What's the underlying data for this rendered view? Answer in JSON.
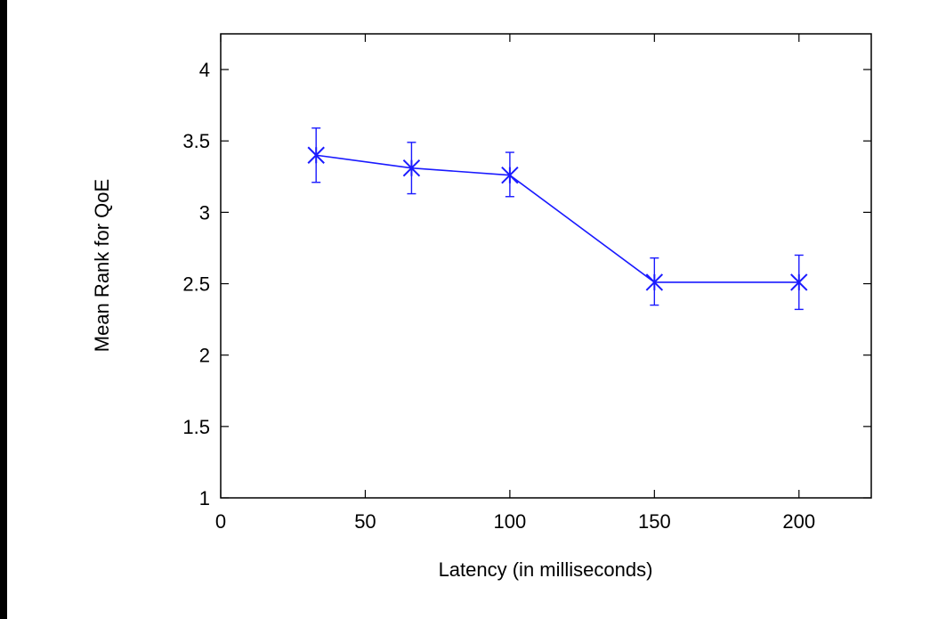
{
  "chart_data": {
    "type": "line",
    "title": "",
    "xlabel": "Latency (in milliseconds)",
    "ylabel": "Mean Rank for QoE",
    "xlim": [
      0,
      225
    ],
    "ylim": [
      1,
      4.25
    ],
    "x_ticks": [
      "0",
      "50",
      "100",
      "150",
      "200"
    ],
    "y_ticks": [
      "1",
      "1.5",
      "2",
      "2.5",
      "3",
      "3.5",
      "4"
    ],
    "grid": false,
    "legend": "none",
    "series": [
      {
        "color": "#1a1aff",
        "marker": "star",
        "points": [
          {
            "x": 33,
            "y": 3.4,
            "err_low": 3.21,
            "err_high": 3.59
          },
          {
            "x": 66,
            "y": 3.31,
            "err_low": 3.13,
            "err_high": 3.49
          },
          {
            "x": 100,
            "y": 3.26,
            "err_low": 3.11,
            "err_high": 3.42
          },
          {
            "x": 150,
            "y": 2.51,
            "err_low": 2.35,
            "err_high": 2.68
          },
          {
            "x": 200,
            "y": 2.51,
            "err_low": 2.32,
            "err_high": 2.7
          }
        ]
      }
    ]
  }
}
